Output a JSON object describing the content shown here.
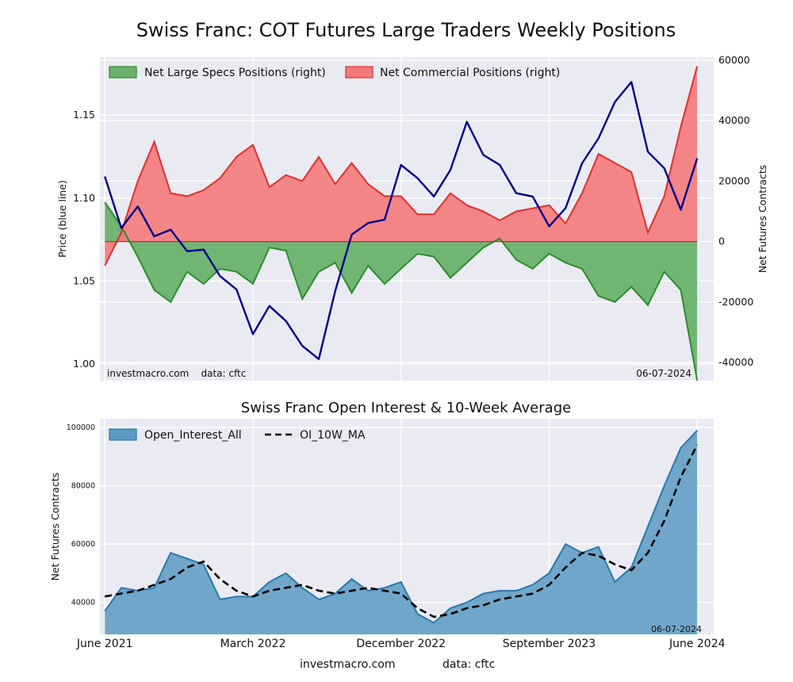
{
  "title": "Swiss Franc: COT Futures Large Traders Weekly Positions",
  "footer": {
    "site": "investmacro.com",
    "source": "data: cftc"
  },
  "colors": {
    "panel_bg": "#eaeaf2",
    "grid": "#ffffff",
    "price_line": "#00008b",
    "specs_fill": "#6ab26a",
    "specs_line": "#2e8b2e",
    "comm_fill": "#f47a7a",
    "comm_line": "#e03030",
    "oi_fill": "#5b9ac2",
    "oi_line": "#2a78a8",
    "ma_line": "#000000"
  },
  "chart_data": [
    {
      "type": "line+area",
      "title": "",
      "date_range": [
        "2021-06-01",
        "2024-06-07"
      ],
      "xlim_months": [
        -0.3,
        37.0
      ],
      "xlabel": "",
      "ylabel_left": "Price (blue line)",
      "ylabel_right": "Net Futures Contracts",
      "ylim_left": [
        0.99,
        1.185
      ],
      "ylim_right": [
        -46000,
        61000
      ],
      "yticks_left": [
        "1.00",
        "1.05",
        "1.10",
        "1.15"
      ],
      "yticks_right": [
        "-40000",
        "-20000",
        "0",
        "20000",
        "40000",
        "60000"
      ],
      "legend": [
        "Net Large Specs Positions (right)",
        "Net Commercial Positions (right)"
      ],
      "legend_position": "top-left",
      "annotation_left": "investmacro.com    data: cftc",
      "annotation_right": "06-07-2024",
      "grid": true,
      "series": [
        {
          "name": "Net Large Specs Positions (right)",
          "kind": "area",
          "axis": "right",
          "points": [
            [
              0,
              13000
            ],
            [
              1,
              5000
            ],
            [
              2,
              -5000
            ],
            [
              3,
              -16000
            ],
            [
              4,
              -20000
            ],
            [
              5,
              -10000
            ],
            [
              6,
              -14000
            ],
            [
              7,
              -9000
            ],
            [
              8,
              -10000
            ],
            [
              9,
              -14000
            ],
            [
              10,
              -2000
            ],
            [
              11,
              -3000
            ],
            [
              12,
              -19000
            ],
            [
              13,
              -10000
            ],
            [
              14,
              -7000
            ],
            [
              15,
              -17000
            ],
            [
              16,
              -8000
            ],
            [
              17,
              -14000
            ],
            [
              18,
              -9000
            ],
            [
              19,
              -4000
            ],
            [
              20,
              -5000
            ],
            [
              21,
              -12000
            ],
            [
              22,
              -7000
            ],
            [
              23,
              -2000
            ],
            [
              24,
              1000
            ],
            [
              25,
              -6000
            ],
            [
              26,
              -9000
            ],
            [
              27,
              -4000
            ],
            [
              28,
              -7000
            ],
            [
              29,
              -9000
            ],
            [
              30,
              -18000
            ],
            [
              31,
              -20000
            ],
            [
              32,
              -15000
            ],
            [
              33,
              -21000
            ],
            [
              34,
              -10000
            ],
            [
              35,
              -16000
            ],
            [
              36,
              -46000
            ]
          ]
        },
        {
          "name": "Net Commercial Positions (right)",
          "kind": "area",
          "axis": "right",
          "points": [
            [
              0,
              -8000
            ],
            [
              1,
              3000
            ],
            [
              2,
              20000
            ],
            [
              3,
              33000
            ],
            [
              4,
              16000
            ],
            [
              5,
              15000
            ],
            [
              6,
              17000
            ],
            [
              7,
              21000
            ],
            [
              8,
              28000
            ],
            [
              9,
              32000
            ],
            [
              10,
              18000
            ],
            [
              11,
              22000
            ],
            [
              12,
              20000
            ],
            [
              13,
              28000
            ],
            [
              14,
              19000
            ],
            [
              15,
              26000
            ],
            [
              16,
              19000
            ],
            [
              17,
              15000
            ],
            [
              18,
              15000
            ],
            [
              19,
              9000
            ],
            [
              20,
              9000
            ],
            [
              21,
              16000
            ],
            [
              22,
              12000
            ],
            [
              23,
              10000
            ],
            [
              24,
              7000
            ],
            [
              25,
              10000
            ],
            [
              26,
              11000
            ],
            [
              27,
              12000
            ],
            [
              28,
              6000
            ],
            [
              29,
              16000
            ],
            [
              30,
              29000
            ],
            [
              31,
              26000
            ],
            [
              32,
              23000
            ],
            [
              33,
              3000
            ],
            [
              34,
              15000
            ],
            [
              35,
              38000
            ],
            [
              36,
              58000
            ]
          ]
        },
        {
          "name": "",
          "kind": "line",
          "axis": "left",
          "points": [
            [
              0,
              1.113
            ],
            [
              1,
              1.082
            ],
            [
              2,
              1.095
            ],
            [
              3,
              1.077
            ],
            [
              4,
              1.081
            ],
            [
              5,
              1.068
            ],
            [
              6,
              1.069
            ],
            [
              7,
              1.053
            ],
            [
              8,
              1.045
            ],
            [
              9,
              1.018
            ],
            [
              10,
              1.035
            ],
            [
              11,
              1.026
            ],
            [
              12,
              1.011
            ],
            [
              13,
              1.003
            ],
            [
              14,
              1.044
            ],
            [
              15,
              1.078
            ],
            [
              16,
              1.085
            ],
            [
              17,
              1.087
            ],
            [
              18,
              1.12
            ],
            [
              19,
              1.112
            ],
            [
              20,
              1.101
            ],
            [
              21,
              1.117
            ],
            [
              22,
              1.146
            ],
            [
              23,
              1.126
            ],
            [
              24,
              1.12
            ],
            [
              25,
              1.103
            ],
            [
              26,
              1.101
            ],
            [
              27,
              1.083
            ],
            [
              28,
              1.094
            ],
            [
              29,
              1.121
            ],
            [
              30,
              1.136
            ],
            [
              31,
              1.158
            ],
            [
              32,
              1.17
            ],
            [
              33,
              1.128
            ],
            [
              34,
              1.118
            ],
            [
              35,
              1.093
            ],
            [
              36,
              1.124
            ]
          ]
        }
      ]
    },
    {
      "type": "area+line",
      "title": "Swiss Franc Open Interest & 10-Week Average",
      "xlabel": "",
      "ylabel": "Net Futures Contracts",
      "ylim": [
        29000,
        103000
      ],
      "yticks": [
        "40000",
        "60000",
        "80000",
        "100000"
      ],
      "categories": [
        "June 2021",
        "March 2022",
        "December 2022",
        "September 2023",
        "June 2024"
      ],
      "legend": [
        "Open_Interest_All",
        "OI_10W_MA"
      ],
      "legend_position": "top-left",
      "annotation_right": "06-07-2024",
      "grid": true,
      "series": [
        {
          "name": "Open_Interest_All",
          "kind": "area",
          "points": [
            [
              0,
              37000
            ],
            [
              1,
              45000
            ],
            [
              2,
              44000
            ],
            [
              3,
              45000
            ],
            [
              4,
              57000
            ],
            [
              5,
              55000
            ],
            [
              6,
              53000
            ],
            [
              7,
              41000
            ],
            [
              8,
              42000
            ],
            [
              9,
              42000
            ],
            [
              10,
              47000
            ],
            [
              11,
              50000
            ],
            [
              12,
              45000
            ],
            [
              13,
              41000
            ],
            [
              14,
              43000
            ],
            [
              15,
              48000
            ],
            [
              16,
              44000
            ],
            [
              17,
              45000
            ],
            [
              18,
              47000
            ],
            [
              19,
              36000
            ],
            [
              20,
              33000
            ],
            [
              21,
              38000
            ],
            [
              22,
              40000
            ],
            [
              23,
              43000
            ],
            [
              24,
              44000
            ],
            [
              25,
              44000
            ],
            [
              26,
              46000
            ],
            [
              27,
              50000
            ],
            [
              28,
              60000
            ],
            [
              29,
              57000
            ],
            [
              30,
              59000
            ],
            [
              31,
              47000
            ],
            [
              32,
              52000
            ],
            [
              33,
              66000
            ],
            [
              34,
              80000
            ],
            [
              35,
              93000
            ],
            [
              36,
              99000
            ]
          ]
        },
        {
          "name": "OI_10W_MA",
          "kind": "line",
          "points": [
            [
              0,
              42000
            ],
            [
              1,
              43000
            ],
            [
              2,
              44000
            ],
            [
              3,
              46000
            ],
            [
              4,
              48000
            ],
            [
              5,
              52000
            ],
            [
              6,
              54000
            ],
            [
              7,
              48000
            ],
            [
              8,
              44000
            ],
            [
              9,
              42000
            ],
            [
              10,
              44000
            ],
            [
              11,
              45000
            ],
            [
              12,
              46000
            ],
            [
              13,
              44000
            ],
            [
              14,
              43000
            ],
            [
              15,
              44000
            ],
            [
              16,
              45000
            ],
            [
              17,
              44000
            ],
            [
              18,
              43000
            ],
            [
              19,
              38000
            ],
            [
              20,
              35000
            ],
            [
              21,
              36000
            ],
            [
              22,
              38000
            ],
            [
              23,
              39000
            ],
            [
              24,
              41000
            ],
            [
              25,
              42000
            ],
            [
              26,
              43000
            ],
            [
              27,
              46000
            ],
            [
              28,
              52000
            ],
            [
              29,
              57000
            ],
            [
              30,
              56000
            ],
            [
              31,
              53000
            ],
            [
              32,
              51000
            ],
            [
              33,
              57000
            ],
            [
              34,
              68000
            ],
            [
              35,
              83000
            ],
            [
              36,
              94000
            ]
          ]
        }
      ]
    }
  ]
}
